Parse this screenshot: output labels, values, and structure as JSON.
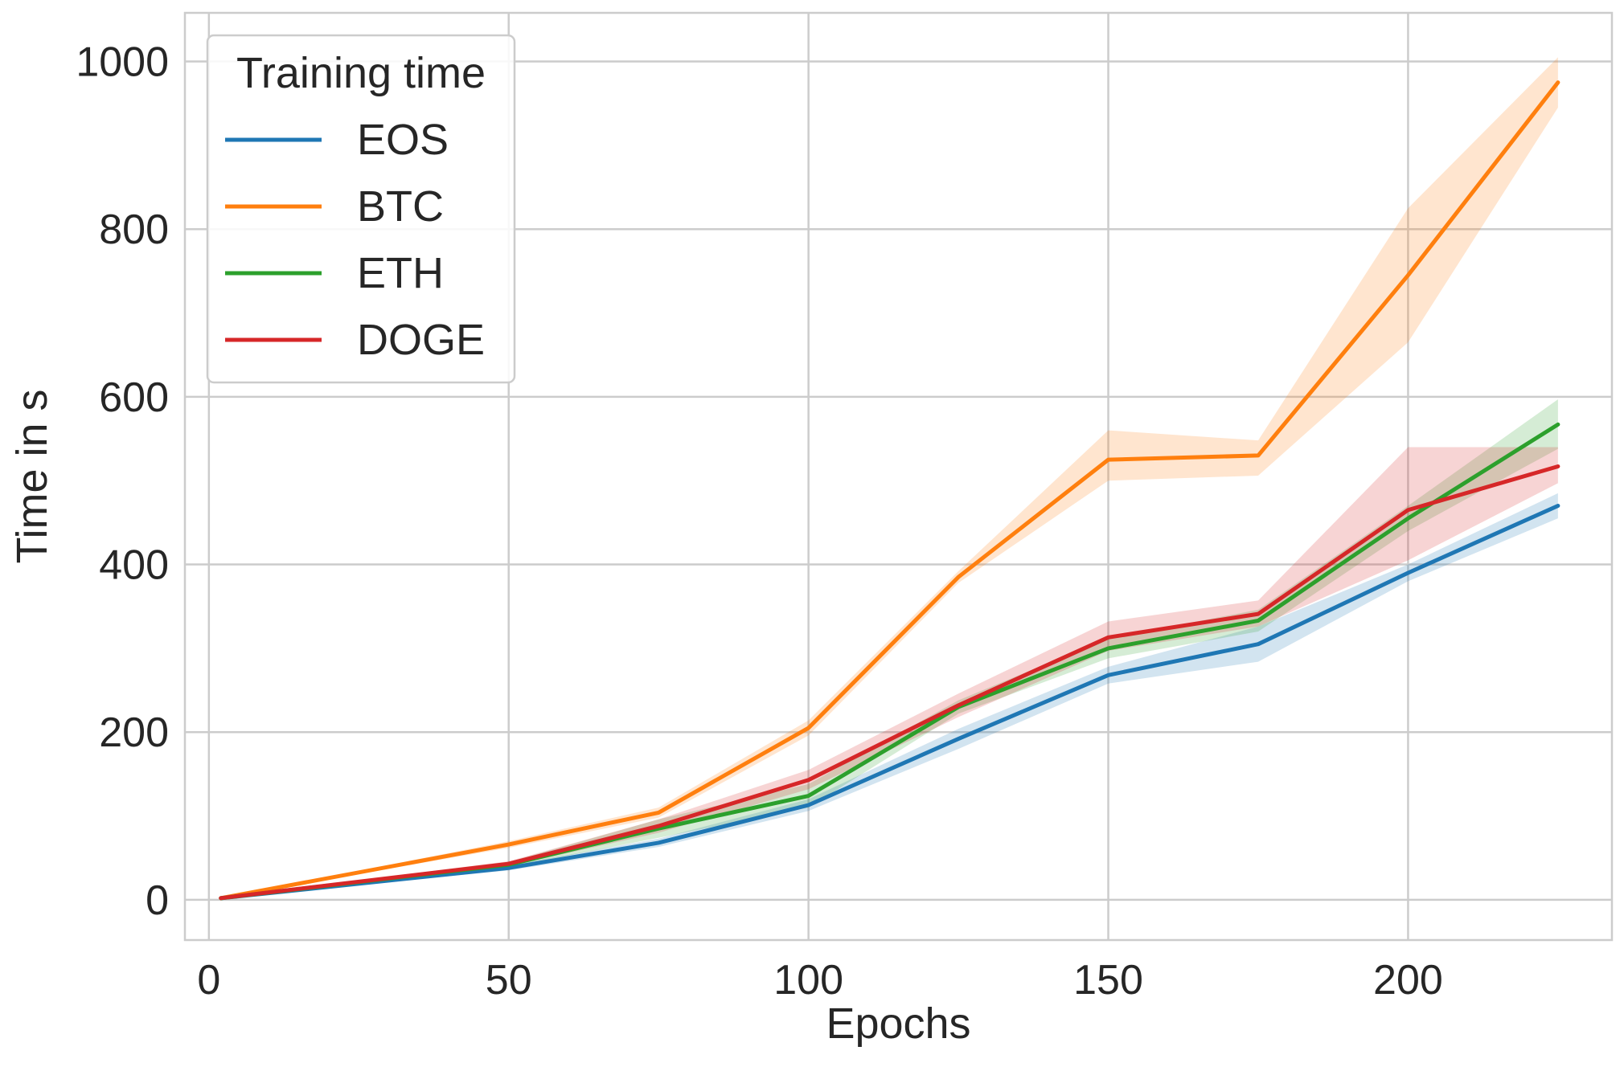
{
  "chart_data": {
    "type": "line",
    "title": "",
    "xlabel": "Epochs",
    "ylabel": "Time in s",
    "xlim": [
      -4,
      234
    ],
    "ylim": [
      -48,
      1058
    ],
    "xticks": [
      0,
      50,
      100,
      150,
      200
    ],
    "yticks": [
      0,
      200,
      400,
      600,
      800,
      1000
    ],
    "grid": true,
    "legend": {
      "title": "Training time",
      "position": "top-left"
    },
    "x": [
      2,
      50,
      75,
      100,
      125,
      150,
      175,
      200,
      225
    ],
    "series": [
      {
        "name": "EOS",
        "color": "#1f77b4",
        "values": [
          2,
          38,
          68,
          113,
          192,
          268,
          305,
          390,
          470
        ],
        "lower": [
          2,
          35,
          63,
          106,
          180,
          258,
          284,
          380,
          455
        ],
        "upper": [
          2,
          41,
          73,
          120,
          204,
          278,
          326,
          400,
          485
        ]
      },
      {
        "name": "BTC",
        "color": "#ff7f0e",
        "values": [
          2,
          66,
          104,
          205,
          385,
          525,
          530,
          745,
          975
        ],
        "lower": [
          2,
          62,
          98,
          196,
          378,
          500,
          506,
          665,
          945
        ],
        "upper": [
          2,
          70,
          110,
          214,
          392,
          560,
          548,
          825,
          1005
        ]
      },
      {
        "name": "ETH",
        "color": "#2ca02c",
        "values": [
          2,
          42,
          85,
          124,
          230,
          300,
          333,
          455,
          567
        ],
        "lower": [
          2,
          39,
          74,
          110,
          222,
          288,
          320,
          440,
          538
        ],
        "upper": [
          2,
          45,
          96,
          138,
          238,
          312,
          346,
          470,
          597
        ]
      },
      {
        "name": "DOGE",
        "color": "#d62728",
        "values": [
          2,
          43,
          88,
          143,
          232,
          313,
          341,
          465,
          517
        ],
        "lower": [
          2,
          40,
          80,
          132,
          218,
          297,
          326,
          405,
          497
        ],
        "upper": [
          2,
          46,
          96,
          155,
          246,
          332,
          357,
          540,
          540
        ]
      }
    ]
  }
}
